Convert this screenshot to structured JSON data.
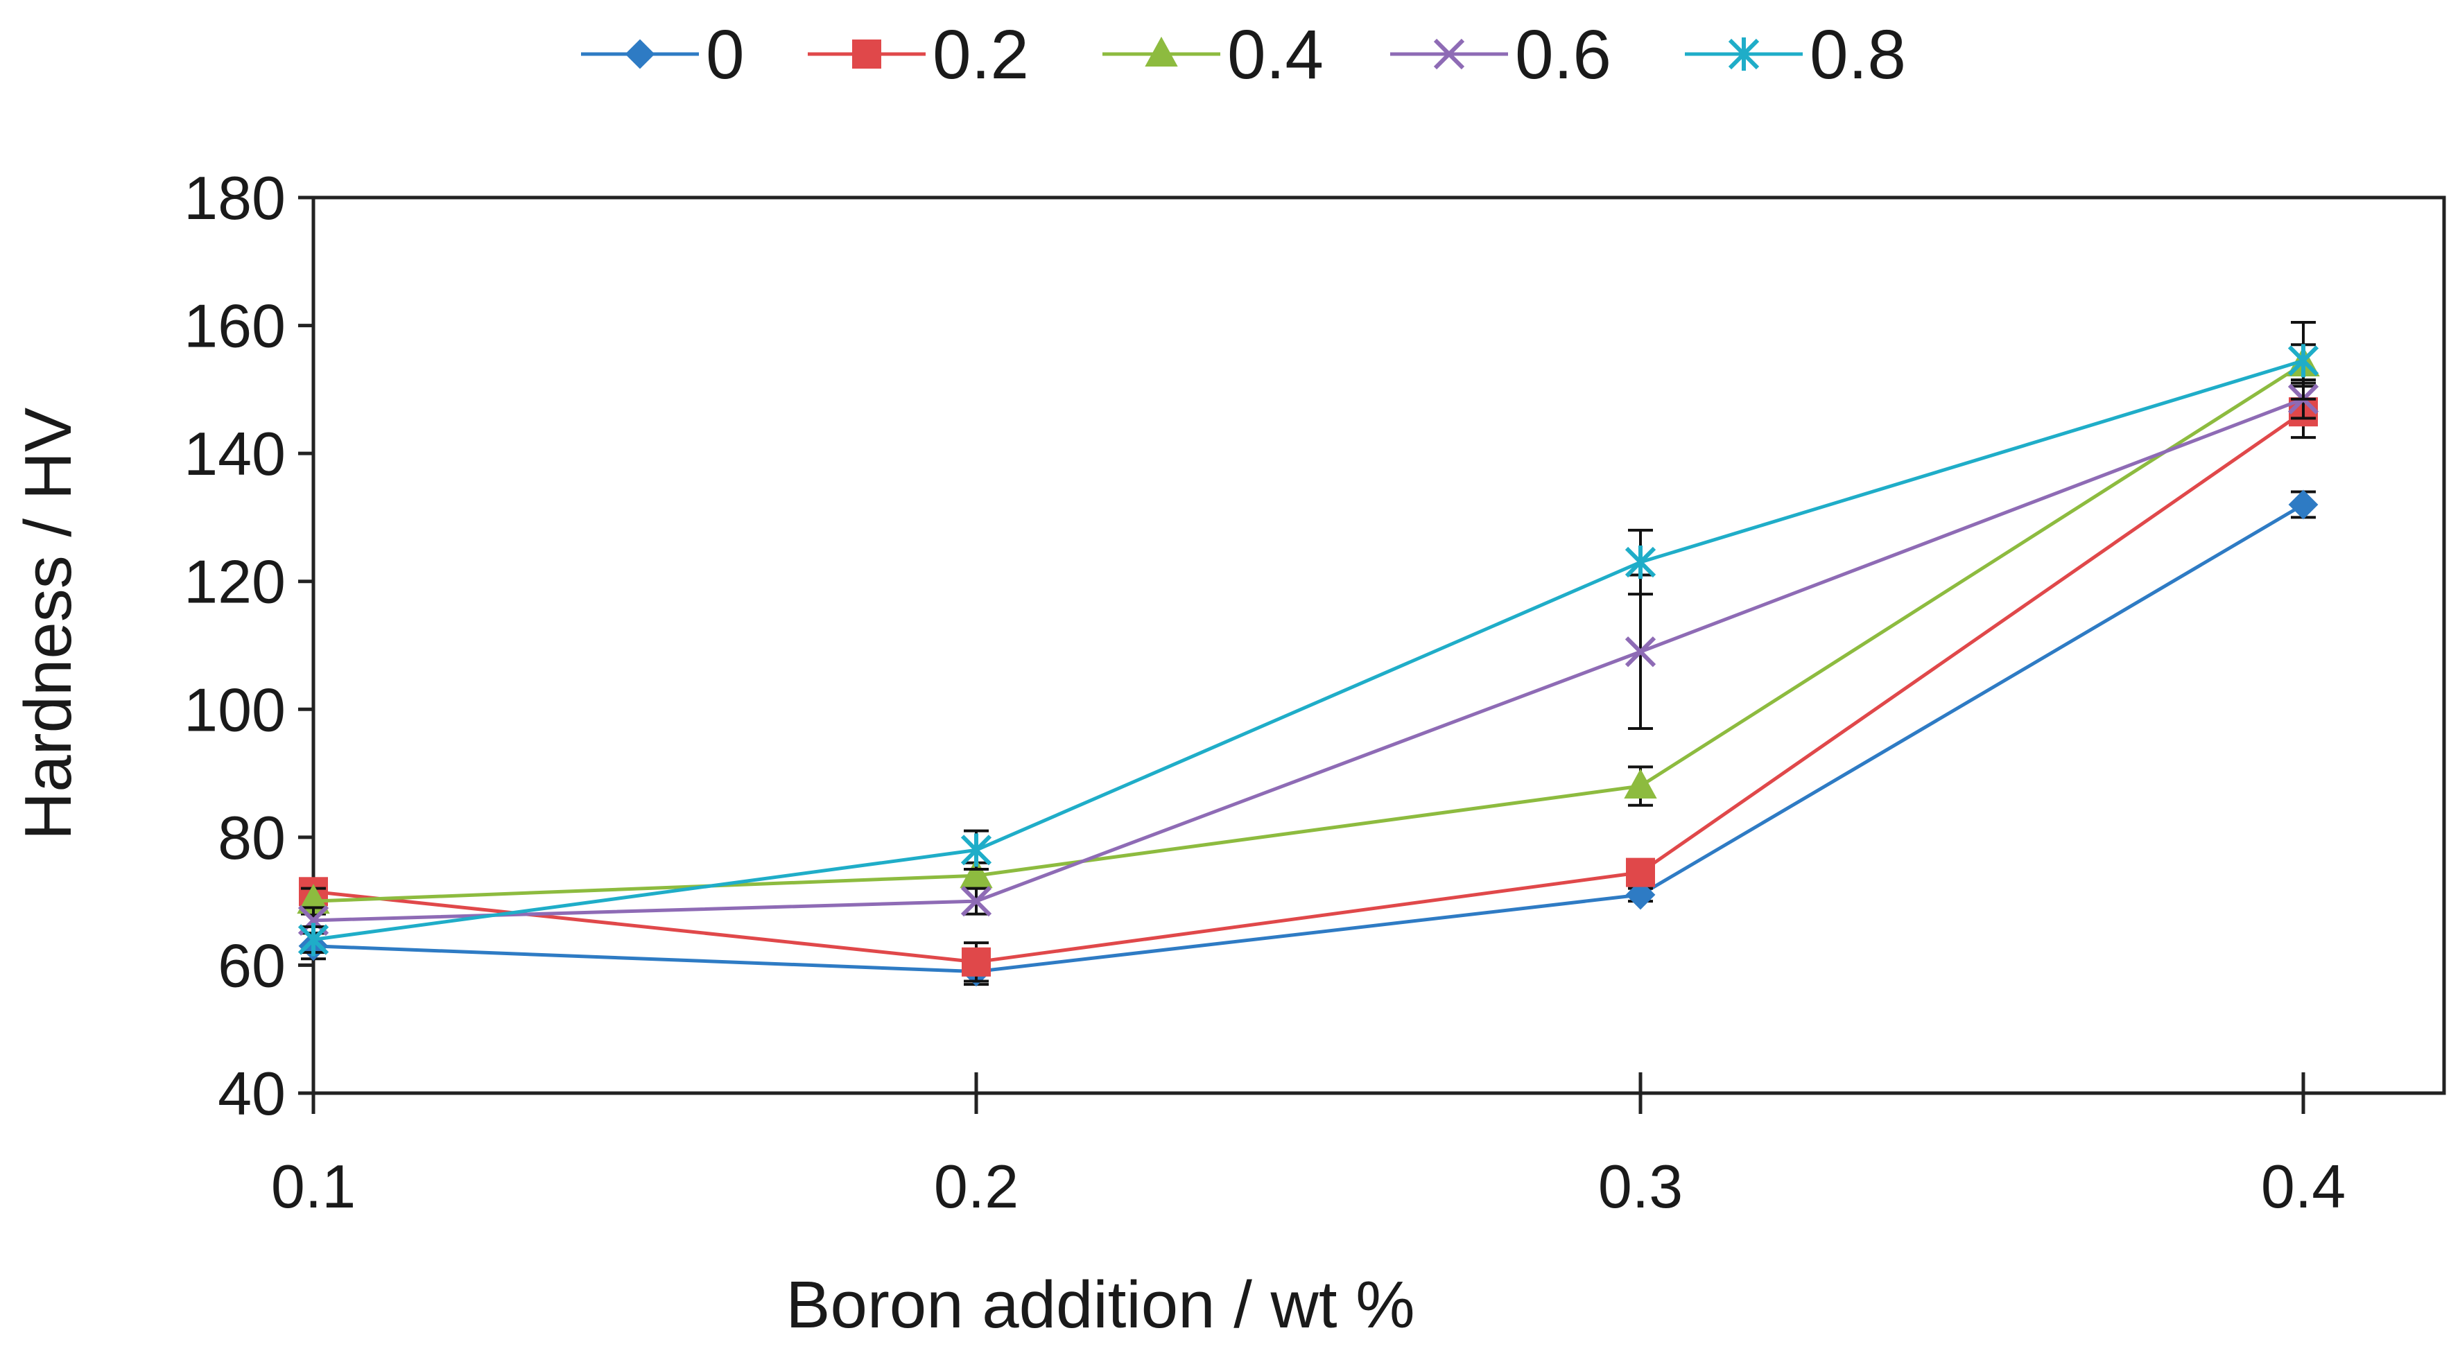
{
  "chart_data": {
    "type": "line",
    "title": "",
    "xlabel": "Boron addition / wt %",
    "ylabel": "Hardness / HV",
    "x": [
      0.1,
      0.2,
      0.3,
      0.4
    ],
    "x_tick_labels": [
      "0.1",
      "0.2",
      "0.3",
      "0.4"
    ],
    "ylim": [
      40,
      180
    ],
    "y_ticks": [
      40,
      60,
      80,
      100,
      120,
      140,
      160,
      180
    ],
    "y_tick_labels": [
      "40",
      "60",
      "80",
      "100",
      "120",
      "140",
      "160",
      "180"
    ],
    "grid": false,
    "legend_position": "top",
    "error_bars": true,
    "series": [
      {
        "name": "0",
        "color": "#2E7BC4",
        "marker": "diamond",
        "values": [
          63,
          59,
          71,
          132
        ],
        "errors": [
          2,
          2,
          1,
          2
        ]
      },
      {
        "name": "0.2",
        "color": "#E0484A",
        "marker": "square",
        "values": [
          71.5,
          60.5,
          74.5,
          146.5
        ],
        "errors": [
          2,
          3,
          2,
          4
        ]
      },
      {
        "name": "0.4",
        "color": "#8DBB3F",
        "marker": "triangle",
        "values": [
          70,
          74,
          88,
          154
        ],
        "errors": [
          2,
          2,
          3,
          3
        ]
      },
      {
        "name": "0.6",
        "color": "#8E6BB5",
        "marker": "x",
        "values": [
          67,
          70,
          109,
          148.5
        ],
        "errors": [
          2,
          2,
          12,
          3
        ]
      },
      {
        "name": "0.8",
        "color": "#1FADC8",
        "marker": "star",
        "values": [
          64,
          78,
          123,
          154.5
        ],
        "errors": [
          2,
          3,
          5,
          6
        ]
      }
    ]
  }
}
